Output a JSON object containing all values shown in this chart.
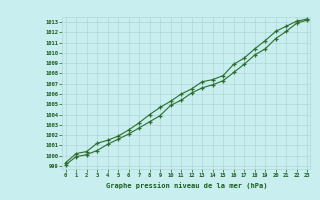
{
  "xlabel": "Graphe pression niveau de la mer (hPa)",
  "bg_color": "#c8eef0",
  "grid_color": "#b0d8d8",
  "line_color": "#2d6e2d",
  "marker_color": "#2d6e2d",
  "text_color": "#1a5c1a",
  "x_ticks": [
    0,
    1,
    2,
    3,
    4,
    5,
    6,
    7,
    8,
    9,
    10,
    11,
    12,
    13,
    14,
    15,
    16,
    17,
    18,
    19,
    20,
    21,
    22,
    23
  ],
  "y_ticks": [
    999,
    1000,
    1001,
    1002,
    1003,
    1004,
    1005,
    1006,
    1007,
    1008,
    1009,
    1010,
    1011,
    1012,
    1013
  ],
  "ylim": [
    998.7,
    1013.5
  ],
  "xlim": [
    -0.3,
    23.3
  ],
  "series1": [
    999.1,
    999.9,
    1000.1,
    1000.5,
    1001.1,
    1001.6,
    1002.1,
    1002.7,
    1003.3,
    1003.9,
    1004.9,
    1005.4,
    1006.1,
    1006.6,
    1006.9,
    1007.3,
    1008.1,
    1008.9,
    1009.8,
    1010.4,
    1011.4,
    1012.1,
    1012.9,
    1013.2
  ],
  "series2": [
    999.3,
    1000.2,
    1000.4,
    1001.2,
    1001.5,
    1001.9,
    1002.5,
    1003.2,
    1004.0,
    1004.7,
    1005.3,
    1006.0,
    1006.5,
    1007.2,
    1007.4,
    1007.8,
    1008.9,
    1009.5,
    1010.4,
    1011.2,
    1012.1,
    1012.6,
    1013.1,
    1013.3
  ]
}
